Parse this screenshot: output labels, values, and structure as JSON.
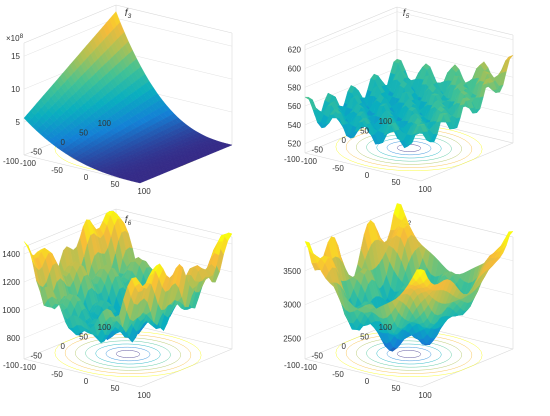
{
  "chart_data": [
    {
      "type": "surface3d",
      "title": {
        "base": "f",
        "sub": "3"
      },
      "function": "ill-conditioned smooth bowl",
      "xticks": [
        "-100",
        "-50",
        "0",
        "50",
        "100"
      ],
      "yticks": [
        "-100",
        "-50",
        "0",
        "50",
        "100"
      ],
      "zticks": [
        "5",
        "10",
        "15"
      ],
      "zlim": [
        0,
        17
      ],
      "z_multiplier": {
        "base": "×10",
        "exp": "8"
      },
      "colormap": "parula",
      "grid": true,
      "contour_on_floor": true
    },
    {
      "type": "surface3d",
      "title": {
        "base": "f",
        "sub": "5"
      },
      "function": "multimodal oscillating surface",
      "xticks": [
        "-100",
        "-50",
        "0",
        "50",
        "100"
      ],
      "yticks": [
        "-100",
        "-50",
        "0",
        "50",
        "100"
      ],
      "zticks": [
        "520",
        "540",
        "560",
        "580",
        "600",
        "620"
      ],
      "zlim": [
        510,
        625
      ],
      "colormap": "parula",
      "grid": true,
      "contour_on_floor": true
    },
    {
      "type": "surface3d",
      "title": {
        "base": "f",
        "sub": "6"
      },
      "function": "rugged ridged surface",
      "xticks": [
        "-100",
        "-50",
        "0",
        "50",
        "100"
      ],
      "yticks": [
        "-100",
        "-50",
        "0",
        "50",
        "100"
      ],
      "zticks": [
        "800",
        "1000",
        "1200",
        "1400"
      ],
      "zlim": [
        650,
        1450
      ],
      "colormap": "parula",
      "grid": true,
      "contour_on_floor": true
    },
    {
      "type": "surface3d",
      "title": {
        "base": "f",
        "sub": "22"
      },
      "function": "multimodal bowl with spikes",
      "xticks": [
        "-100",
        "-50",
        "0",
        "50",
        "100"
      ],
      "yticks": [
        "-100",
        "-50",
        "0",
        "50",
        "100"
      ],
      "zticks": [
        "2500",
        "3000",
        "3500"
      ],
      "zlim": [
        2200,
        3850
      ],
      "colormap": "parula",
      "grid": true,
      "contour_on_floor": true
    }
  ]
}
